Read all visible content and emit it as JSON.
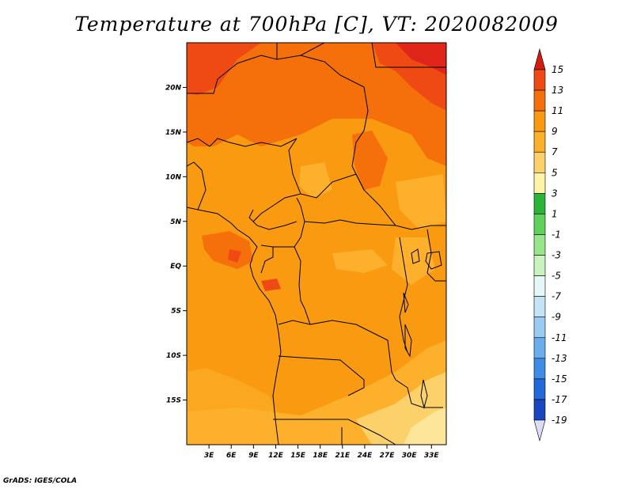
{
  "title": "Temperature at 700hPa [C], VT: 2020082009",
  "credit": "GrADS: IGES/COLA",
  "map": {
    "lon_range": [
      0,
      35
    ],
    "lat_range": [
      -20,
      25
    ],
    "lon_ticks": [
      "3E",
      "6E",
      "9E",
      "12E",
      "15E",
      "18E",
      "21E",
      "24E",
      "27E",
      "30E",
      "33E"
    ],
    "lat_ticks": [
      "20N",
      "15N",
      "10N",
      "5N",
      "EQ",
      "5S",
      "10S",
      "15S"
    ],
    "lon_tick_values": [
      3,
      6,
      9,
      12,
      15,
      18,
      21,
      24,
      27,
      30,
      33
    ],
    "lat_tick_values": [
      20,
      15,
      10,
      5,
      0,
      -5,
      -10,
      -15
    ]
  },
  "colorbar": {
    "labels": [
      "15",
      "13",
      "11",
      "9",
      "7",
      "5",
      "3",
      "1",
      "-1",
      "-3",
      "-5",
      "-7",
      "-9",
      "-11",
      "-13",
      "-15",
      "-17",
      "-19"
    ],
    "colors": [
      "#e0261a",
      "#f04a14",
      "#f5700a",
      "#f99a10",
      "#fcb02c",
      "#fdd16a",
      "#fff3a8",
      "#2ab43a",
      "#5ed25a",
      "#98e68c",
      "#c8f2be",
      "#e6f7f7",
      "#c4e4f6",
      "#9acbf2",
      "#6aaeee",
      "#3f8ce6",
      "#2168d8",
      "#1a46c0",
      "#101a7a"
    ],
    "top_arrow_color": "#d11d10",
    "bottom_arrow_color": "#dcdcf5"
  }
}
